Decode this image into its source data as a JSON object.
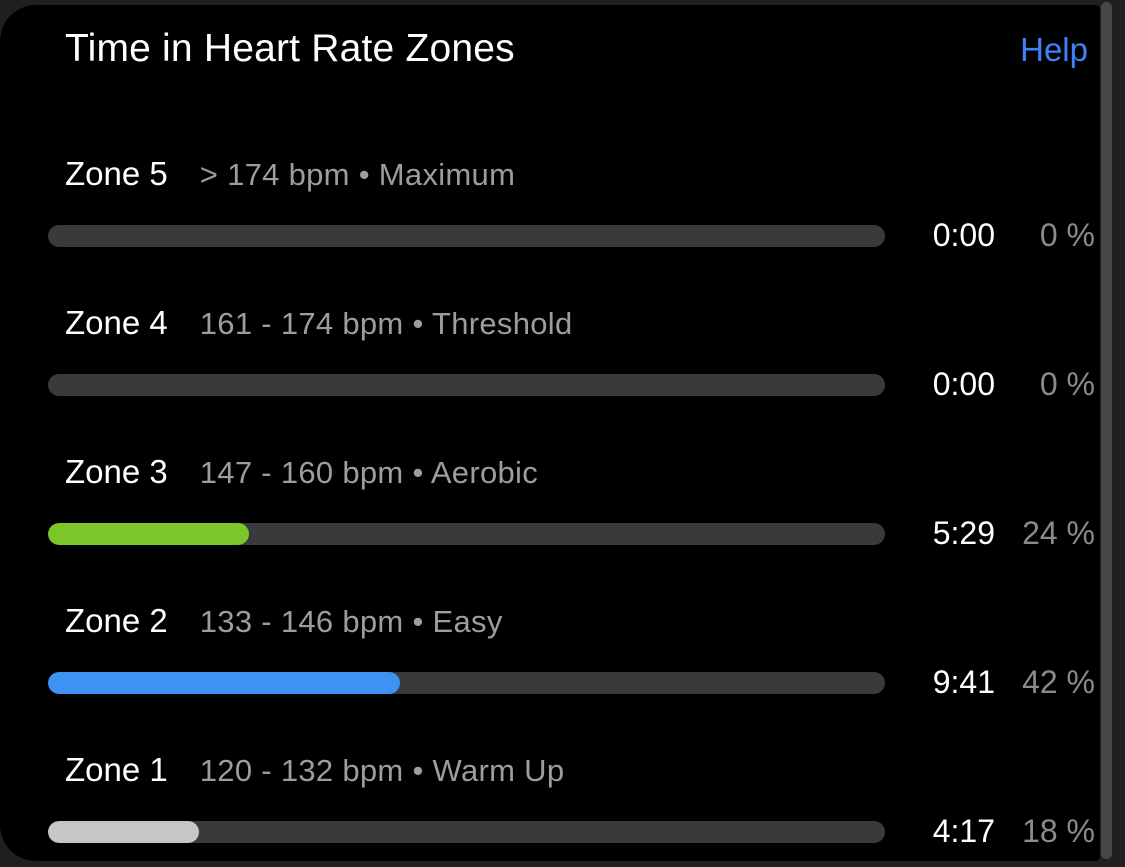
{
  "header": {
    "title": "Time in Heart Rate Zones",
    "help_label": "Help"
  },
  "zones": [
    {
      "name": "Zone 5",
      "range": "> 174 bpm • Maximum",
      "time": "0:00",
      "percent_label": "0 %",
      "percent_value": 0,
      "bar_color": null
    },
    {
      "name": "Zone 4",
      "range": "161 - 174 bpm • Threshold",
      "time": "0:00",
      "percent_label": "0 %",
      "percent_value": 0,
      "bar_color": null
    },
    {
      "name": "Zone 3",
      "range": "147 - 160 bpm • Aerobic",
      "time": "5:29",
      "percent_label": "24 %",
      "percent_value": 24,
      "bar_color": "#7CC62A"
    },
    {
      "name": "Zone 2",
      "range": "133 - 146 bpm • Easy",
      "time": "9:41",
      "percent_label": "42 %",
      "percent_value": 42,
      "bar_color": "#3E92F3"
    },
    {
      "name": "Zone 1",
      "range": "120 - 132 bpm • Warm Up",
      "time": "4:17",
      "percent_label": "18 %",
      "percent_value": 18,
      "bar_color": "#C6C6C8"
    }
  ],
  "colors": {
    "card_background": "#000000",
    "page_background": "#202022",
    "track": "#3A3A3C",
    "help_accent": "#3E82F7",
    "zone3_fill": "#7CC62A",
    "zone2_fill": "#3E92F3",
    "zone1_fill": "#C6C6C8",
    "secondary_text": "#9C9CA1",
    "percent_text": "#8A8A8E"
  }
}
